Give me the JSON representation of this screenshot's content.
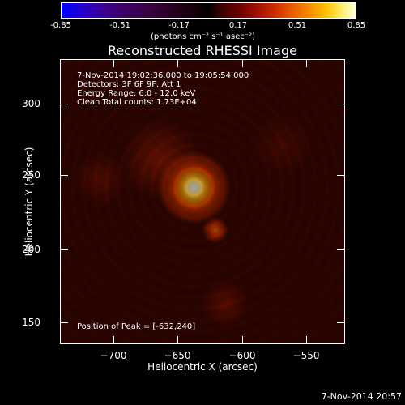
{
  "colorbar": {
    "ticks": [
      "-0.85",
      "-0.51",
      "-0.17",
      "0.17",
      "0.51",
      "0.85"
    ],
    "units": "(photons cm⁻² s⁻¹ asec⁻²)"
  },
  "title": "Reconstructed RHESSI Image",
  "info_lines": [
    "7-Nov-2014 19:02:36.000 to 19:05:54.000",
    "Detectors: 3F 6F 9F, Att 1",
    "Energy Range: 6.0 - 12.0 keV",
    "Clean     Total counts: 1.73E+04"
  ],
  "peak_text": "Position of Peak = [-632,240]",
  "x_axis": {
    "label": "Heliocentric X (arcsec)",
    "ticks": [
      "−700",
      "−650",
      "−600",
      "−550"
    ]
  },
  "y_axis": {
    "label": "Heliocentric Y (arcsec)",
    "ticks": [
      "300",
      "250",
      "200",
      "150"
    ]
  },
  "timestamp": "7-Nov-2014 20:57"
}
